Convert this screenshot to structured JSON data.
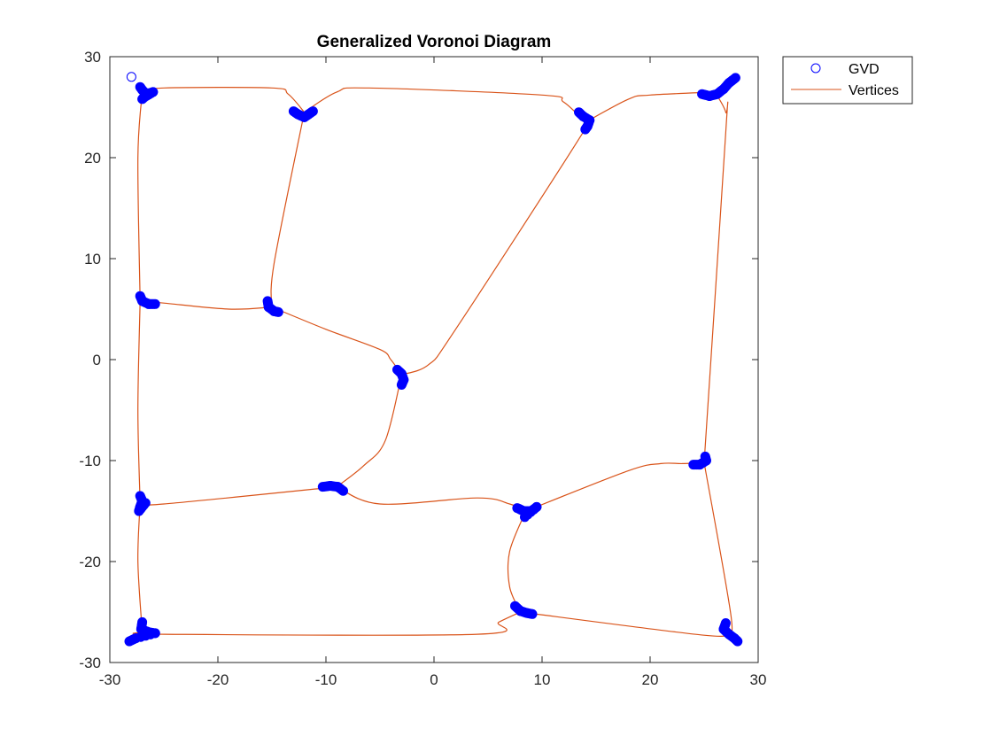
{
  "chart_data": {
    "type": "line",
    "title": "Generalized Voronoi Diagram",
    "xlabel": "",
    "ylabel": "",
    "xlim": [
      -30,
      30
    ],
    "ylim": [
      -30,
      30
    ],
    "x_ticks": [
      -30,
      -20,
      -10,
      0,
      10,
      20,
      30
    ],
    "y_ticks": [
      -30,
      -20,
      -10,
      0,
      10,
      20,
      30
    ],
    "grid": false,
    "legend_position": "outside-top-right",
    "legend": [
      {
        "label": "GVD",
        "marker": "circle",
        "color": "#0000ff"
      },
      {
        "label": "Vertices",
        "marker": "line",
        "color": "#d95319"
      }
    ],
    "colors": {
      "marker": "#0000ff",
      "line": "#d95319",
      "axes": "#262626"
    },
    "start_point": [
      -28,
      28
    ],
    "vertices": [
      {
        "name": "v1",
        "x": -27,
        "y": 26.5
      },
      {
        "name": "v2",
        "x": -12,
        "y": 24.5
      },
      {
        "name": "v3",
        "x": 14,
        "y": 23.5
      },
      {
        "name": "v4",
        "x": 26,
        "y": 26.5
      },
      {
        "name": "v5",
        "x": -27,
        "y": 5.8
      },
      {
        "name": "v6",
        "x": -15,
        "y": 5.2
      },
      {
        "name": "v7",
        "x": -3,
        "y": -1.5
      },
      {
        "name": "v8",
        "x": 25,
        "y": -10.2
      },
      {
        "name": "v9",
        "x": -27,
        "y": -14.2
      },
      {
        "name": "v10",
        "x": -9,
        "y": -12.6
      },
      {
        "name": "v11",
        "x": 8.5,
        "y": -15
      },
      {
        "name": "v12",
        "x": -27,
        "y": -27
      },
      {
        "name": "v13",
        "x": 8,
        "y": -25
      },
      {
        "name": "v14",
        "x": 27,
        "y": -27
      }
    ],
    "edges": [
      {
        "points": [
          [
            -27,
            26.5
          ],
          [
            -25,
            26.9
          ],
          [
            -15,
            26.9
          ],
          [
            -13.5,
            26.3
          ],
          [
            -12,
            24.5
          ]
        ]
      },
      {
        "points": [
          [
            -12,
            24.5
          ],
          [
            -9,
            26.5
          ],
          [
            -6,
            26.9
          ],
          [
            10,
            26.2
          ],
          [
            12,
            25.5
          ],
          [
            14,
            23.5
          ]
        ]
      },
      {
        "points": [
          [
            14,
            23.5
          ],
          [
            18,
            25.8
          ],
          [
            20,
            26.2
          ],
          [
            26,
            26.5
          ]
        ]
      },
      {
        "points": [
          [
            26,
            26.5
          ],
          [
            27.5,
            28
          ]
        ]
      },
      {
        "points": [
          [
            26,
            26.5
          ],
          [
            27,
            24.5
          ],
          [
            27,
            22.5
          ],
          [
            25,
            -10.2
          ]
        ]
      },
      {
        "points": [
          [
            -27,
            26.5
          ],
          [
            -27.4,
            20
          ],
          [
            -27.2,
            5.8
          ]
        ]
      },
      {
        "points": [
          [
            -12,
            24.5
          ],
          [
            -14.8,
            9.5
          ],
          [
            -15,
            5.2
          ]
        ]
      },
      {
        "points": [
          [
            14,
            23.5
          ],
          [
            13.5,
            22
          ],
          [
            2,
            3
          ],
          [
            -0.5,
            -0.5
          ],
          [
            -3,
            -1.5
          ]
        ]
      },
      {
        "points": [
          [
            -27,
            5.8
          ],
          [
            -25,
            5.6
          ],
          [
            -19,
            5
          ],
          [
            -15,
            5.2
          ]
        ]
      },
      {
        "points": [
          [
            -15,
            5.2
          ],
          [
            -10,
            3
          ],
          [
            -5,
            1
          ],
          [
            -4,
            0
          ],
          [
            -3,
            -1.5
          ]
        ]
      },
      {
        "points": [
          [
            -3,
            -1.5
          ],
          [
            -4.5,
            -8
          ],
          [
            -6.5,
            -10.5
          ],
          [
            -9,
            -12.6
          ]
        ]
      },
      {
        "points": [
          [
            -27.2,
            5.8
          ],
          [
            -27.4,
            -5
          ],
          [
            -27.2,
            -14.2
          ]
        ]
      },
      {
        "points": [
          [
            -27,
            -14.2
          ],
          [
            -25,
            -14.3
          ],
          [
            -9,
            -12.6
          ]
        ]
      },
      {
        "points": [
          [
            -9,
            -12.6
          ],
          [
            -5,
            -14.3
          ],
          [
            4,
            -13.7
          ],
          [
            7,
            -14.3
          ],
          [
            8.5,
            -15
          ]
        ]
      },
      {
        "points": [
          [
            8.5,
            -15
          ],
          [
            18,
            -11
          ],
          [
            21,
            -10.3
          ],
          [
            23,
            -10.3
          ],
          [
            25,
            -10.2
          ]
        ]
      },
      {
        "points": [
          [
            25,
            -10.2
          ],
          [
            27.5,
            -25.5
          ],
          [
            27,
            -27
          ]
        ]
      },
      {
        "points": [
          [
            -27.2,
            -14.2
          ],
          [
            -27.4,
            -20
          ],
          [
            -27,
            -27
          ]
        ]
      },
      {
        "points": [
          [
            -27,
            -27
          ],
          [
            -25,
            -27.2
          ],
          [
            4,
            -27.2
          ],
          [
            6,
            -26
          ],
          [
            8,
            -25
          ]
        ]
      },
      {
        "points": [
          [
            8,
            -25
          ],
          [
            7,
            -22.5
          ],
          [
            7,
            -19
          ],
          [
            8.5,
            -15
          ]
        ]
      },
      {
        "points": [
          [
            8,
            -25
          ],
          [
            25,
            -27.3
          ],
          [
            27,
            -27
          ]
        ]
      },
      {
        "points": [
          [
            -27,
            -27
          ],
          [
            -28,
            -28
          ]
        ]
      },
      {
        "points": [
          [
            27,
            -27
          ],
          [
            28,
            -28
          ]
        ]
      }
    ],
    "marker_blobs": [
      {
        "points": [
          [
            -27.2,
            27.0
          ],
          [
            -27.0,
            26.7
          ],
          [
            -26.6,
            26.3
          ],
          [
            -26.0,
            26.5
          ],
          [
            -26.8,
            26.0
          ],
          [
            -27.0,
            25.8
          ]
        ]
      },
      {
        "points": [
          [
            -13.0,
            24.6
          ],
          [
            -12.6,
            24.3
          ],
          [
            -12.0,
            24.0
          ],
          [
            -11.6,
            24.3
          ],
          [
            -11.2,
            24.6
          ]
        ]
      },
      {
        "points": [
          [
            13.4,
            24.5
          ],
          [
            13.8,
            24.1
          ],
          [
            14.4,
            23.7
          ],
          [
            14.2,
            23.1
          ],
          [
            14.0,
            22.8
          ]
        ]
      },
      {
        "points": [
          [
            24.8,
            26.3
          ],
          [
            25.5,
            26.1
          ],
          [
            26.2,
            26.3
          ],
          [
            26.8,
            26.8
          ],
          [
            27.3,
            27.4
          ],
          [
            27.9,
            27.9
          ]
        ]
      },
      {
        "points": [
          [
            -27.2,
            6.3
          ],
          [
            -27.0,
            5.8
          ],
          [
            -26.4,
            5.5
          ],
          [
            -25.8,
            5.5
          ]
        ]
      },
      {
        "points": [
          [
            -15.4,
            5.8
          ],
          [
            -15.3,
            5.2
          ],
          [
            -14.8,
            4.8
          ],
          [
            -14.4,
            4.7
          ]
        ]
      },
      {
        "points": [
          [
            -3.4,
            -1.0
          ],
          [
            -3.0,
            -1.4
          ],
          [
            -2.8,
            -2.0
          ],
          [
            -3.0,
            -2.5
          ]
        ]
      },
      {
        "points": [
          [
            24.0,
            -10.4
          ],
          [
            24.6,
            -10.4
          ],
          [
            25.2,
            -10.0
          ],
          [
            25.1,
            -9.6
          ]
        ]
      },
      {
        "points": [
          [
            -27.2,
            -13.5
          ],
          [
            -27.0,
            -14.0
          ],
          [
            -27.2,
            -14.6
          ],
          [
            -27.3,
            -15.0
          ],
          [
            -26.7,
            -14.2
          ]
        ]
      },
      {
        "points": [
          [
            -10.3,
            -12.6
          ],
          [
            -9.6,
            -12.5
          ],
          [
            -8.9,
            -12.6
          ],
          [
            -8.4,
            -13.0
          ]
        ]
      },
      {
        "points": [
          [
            7.7,
            -14.7
          ],
          [
            8.3,
            -15.0
          ],
          [
            9.0,
            -15.0
          ],
          [
            9.5,
            -14.6
          ],
          [
            8.4,
            -15.6
          ]
        ]
      },
      {
        "points": [
          [
            7.5,
            -24.4
          ],
          [
            8.0,
            -24.9
          ],
          [
            8.6,
            -25.1
          ],
          [
            9.1,
            -25.2
          ]
        ]
      },
      {
        "points": [
          [
            -27.0,
            -26.0
          ],
          [
            -27.1,
            -26.7
          ],
          [
            -26.4,
            -27.0
          ],
          [
            -25.8,
            -27.1
          ],
          [
            -27.6,
            -27.6
          ],
          [
            -28.2,
            -27.9
          ]
        ]
      },
      {
        "points": [
          [
            27.0,
            -26.1
          ],
          [
            26.8,
            -26.7
          ],
          [
            27.3,
            -27.2
          ],
          [
            27.8,
            -27.6
          ],
          [
            28.1,
            -27.9
          ]
        ]
      }
    ]
  }
}
